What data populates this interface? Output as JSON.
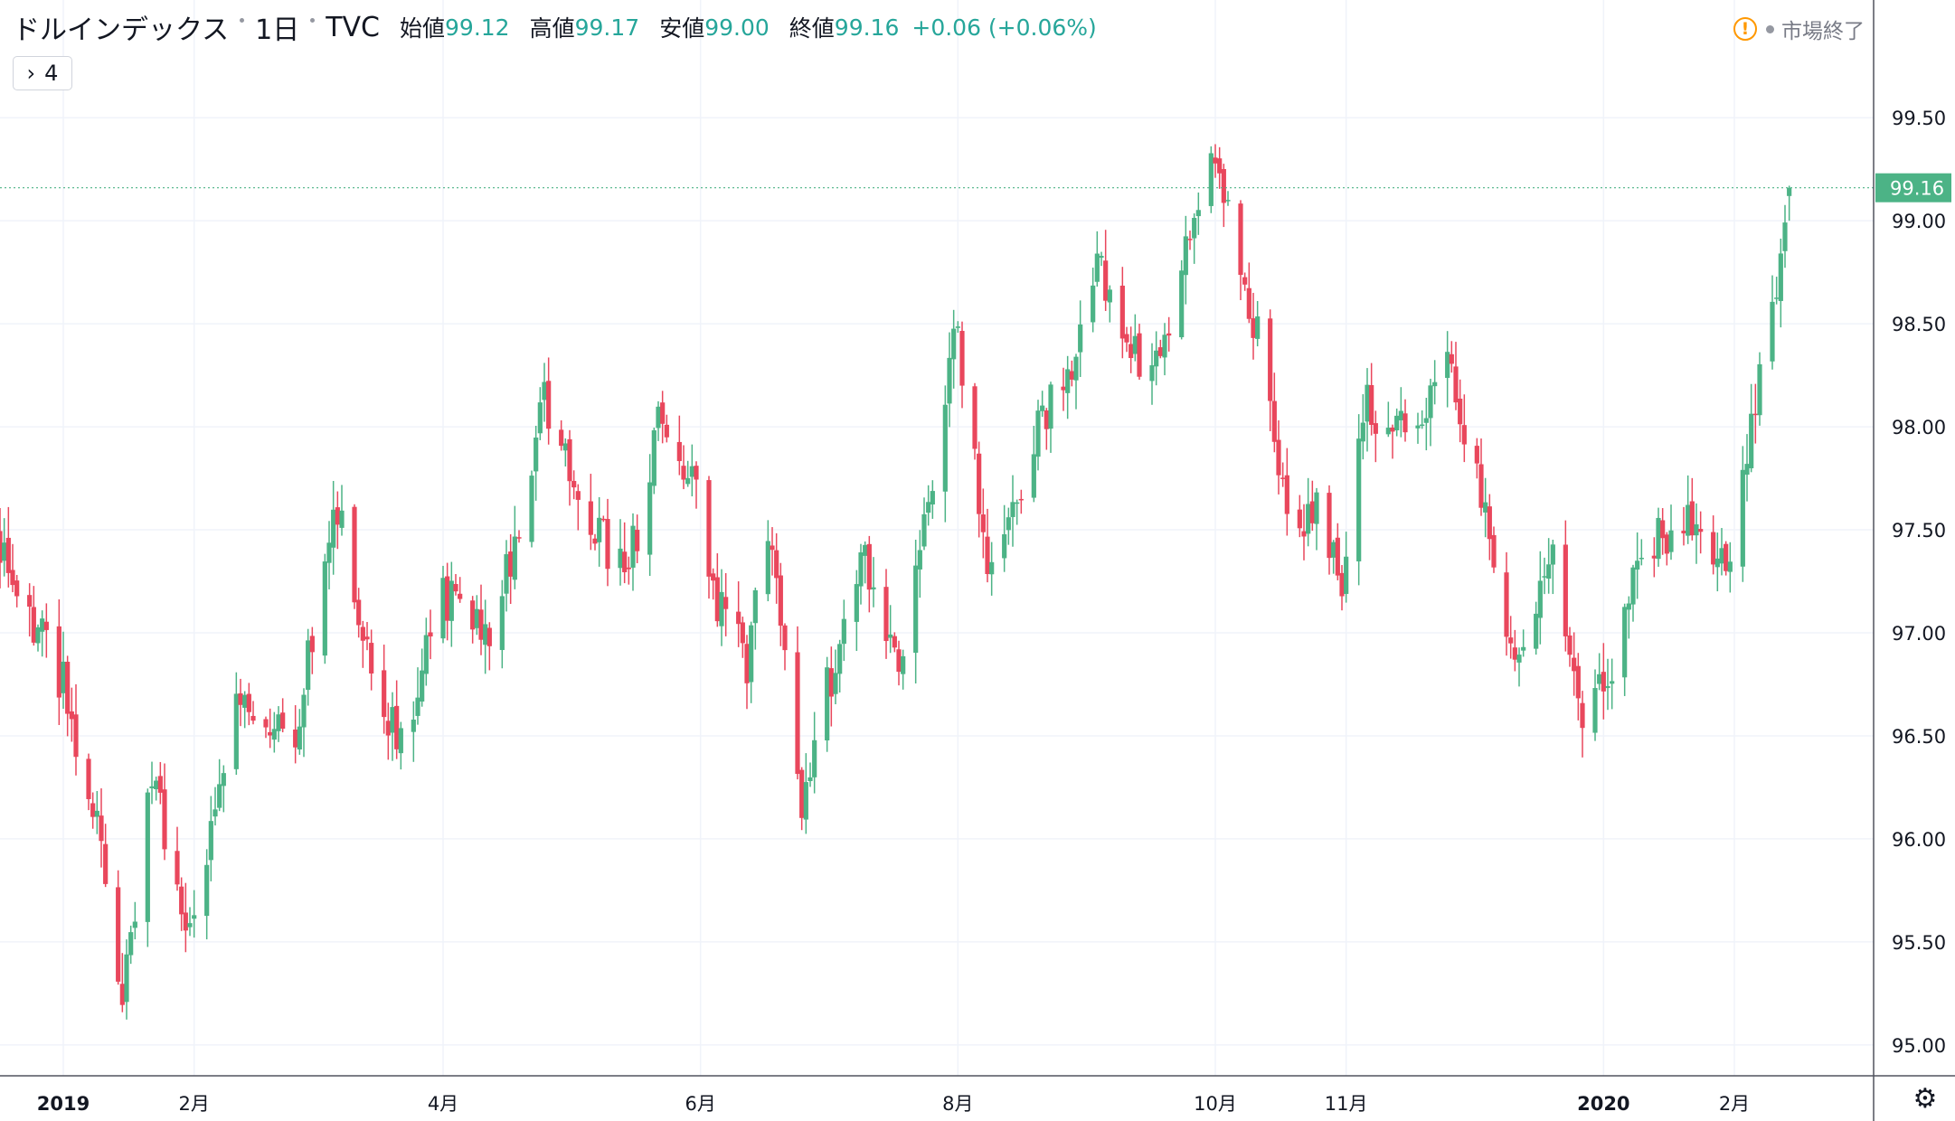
{
  "header": {
    "symbol": "ドルインデックス",
    "interval": "1日",
    "exchange": "TVC",
    "open_label": "始値",
    "open_value": "99.12",
    "high_label": "高値",
    "high_value": "99.17",
    "low_label": "安値",
    "low_value": "99.00",
    "close_label": "終値",
    "close_value": "99.16",
    "change": "+0.06 (+0.06%)"
  },
  "status": {
    "market": "市場終了"
  },
  "indicators": {
    "count": "4"
  },
  "colors": {
    "up": "#4cb386",
    "down": "#e9475c",
    "grid": "#f0f3fa",
    "price_line": "#4cb386"
  },
  "chart_data": {
    "type": "candlestick",
    "y_ticks": [
      "95.00",
      "95.50",
      "96.00",
      "96.50",
      "97.00",
      "97.50",
      "98.00",
      "98.50",
      "99.00",
      "99.50"
    ],
    "ylim": [
      94.85,
      99.83
    ],
    "last_price": "99.16",
    "x_ticks": [
      {
        "label": "2019",
        "date": "2019-01-01"
      },
      {
        "label": "2月",
        "date": "2019-02-01"
      },
      {
        "label": "4月",
        "date": "2019-04-01"
      },
      {
        "label": "6月",
        "date": "2019-06-01"
      },
      {
        "label": "8月",
        "date": "2019-08-01"
      },
      {
        "label": "10月",
        "date": "2019-10-01"
      },
      {
        "label": "11月",
        "date": "2019-11-01"
      },
      {
        "label": "2020",
        "date": "2020-01-01"
      },
      {
        "label": "2月",
        "date": "2020-02-01"
      }
    ],
    "xlim": [
      "2018-12-17",
      "2020-03-05"
    ],
    "close_path": [
      [
        "2018-12-17",
        97.4
      ],
      [
        "2019-01-02",
        96.7
      ],
      [
        "2019-01-10",
        95.95
      ],
      [
        "2019-01-15",
        95.25
      ],
      [
        "2019-01-22",
        96.3
      ],
      [
        "2019-01-31",
        95.55
      ],
      [
        "2019-02-10",
        96.65
      ],
      [
        "2019-02-25",
        96.55
      ],
      [
        "2019-03-07",
        97.6
      ],
      [
        "2019-03-15",
        96.75
      ],
      [
        "2019-03-22",
        96.45
      ],
      [
        "2019-04-01",
        97.2
      ],
      [
        "2019-04-12",
        96.95
      ],
      [
        "2019-04-25",
        98.1
      ],
      [
        "2019-05-05",
        97.55
      ],
      [
        "2019-05-15",
        97.3
      ],
      [
        "2019-05-22",
        98.05
      ],
      [
        "2019-05-31",
        97.7
      ],
      [
        "2019-06-05",
        97.15
      ],
      [
        "2019-06-12",
        96.85
      ],
      [
        "2019-06-17",
        97.55
      ],
      [
        "2019-06-25",
        96.1
      ],
      [
        "2019-06-30",
        96.65
      ],
      [
        "2019-07-10",
        97.35
      ],
      [
        "2019-07-18",
        96.75
      ],
      [
        "2019-07-26",
        97.7
      ],
      [
        "2019-07-31",
        98.55
      ],
      [
        "2019-08-08",
        97.4
      ],
      [
        "2019-08-13",
        97.55
      ],
      [
        "2019-08-20",
        98.05
      ],
      [
        "2019-08-27",
        98.2
      ],
      [
        "2019-09-03",
        98.85
      ],
      [
        "2019-09-08",
        98.35
      ],
      [
        "2019-09-18",
        98.35
      ],
      [
        "2019-09-25",
        98.95
      ],
      [
        "2019-09-30",
        99.35
      ],
      [
        "2019-10-06",
        98.8
      ],
      [
        "2019-10-12",
        98.35
      ],
      [
        "2019-10-20",
        97.35
      ],
      [
        "2019-10-25",
        97.7
      ],
      [
        "2019-10-31",
        97.15
      ],
      [
        "2019-11-05",
        98.1
      ],
      [
        "2019-11-15",
        97.95
      ],
      [
        "2019-11-25",
        98.35
      ],
      [
        "2019-12-03",
        97.7
      ],
      [
        "2019-12-12",
        96.8
      ],
      [
        "2019-12-20",
        97.35
      ],
      [
        "2019-12-28",
        96.55
      ],
      [
        "2020-01-03",
        96.85
      ],
      [
        "2020-01-10",
        97.35
      ],
      [
        "2020-01-20",
        97.6
      ],
      [
        "2020-01-31",
        97.35
      ],
      [
        "2020-02-10",
        98.55
      ],
      [
        "2020-02-14",
        99.16
      ]
    ]
  }
}
